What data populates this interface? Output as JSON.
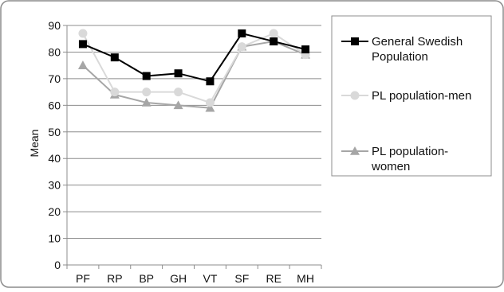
{
  "chart_data": {
    "type": "line",
    "categories": [
      "PF",
      "RP",
      "BP",
      "GH",
      "VT",
      "SF",
      "RE",
      "MH"
    ],
    "ylabel": "Mean",
    "ylim": [
      0,
      90
    ],
    "yticks": [
      0,
      10,
      20,
      30,
      40,
      50,
      60,
      70,
      80,
      90
    ],
    "grid": true,
    "legend_position": "right",
    "series": [
      {
        "name_lines": [
          "General Swedish",
          "Population"
        ],
        "marker": "square",
        "color": "#000000",
        "values": [
          83,
          78,
          71,
          72,
          69,
          87,
          84,
          81
        ]
      },
      {
        "name_lines": [
          "PL population-men"
        ],
        "marker": "circle",
        "color": "#d9d9d9",
        "values": [
          87,
          65,
          65,
          65,
          61,
          82,
          87,
          79
        ]
      },
      {
        "name_lines": [
          "PL population-",
          "women"
        ],
        "marker": "triangle",
        "color": "#a6a6a6",
        "values": [
          75,
          64,
          61,
          60,
          59,
          82,
          84,
          79
        ]
      }
    ]
  }
}
